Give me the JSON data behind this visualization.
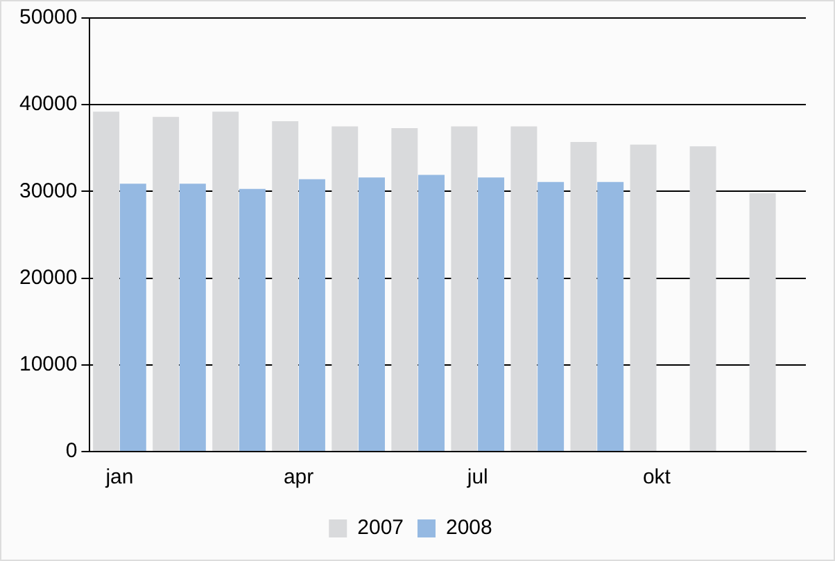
{
  "chart_data": {
    "type": "bar",
    "categories": [
      "jan",
      null,
      null,
      "apr",
      null,
      null,
      "jul",
      null,
      null,
      "okt",
      null,
      null
    ],
    "series": [
      {
        "name": "2007",
        "color": "#d9dadc",
        "values": [
          39200,
          38600,
          39200,
          38100,
          37500,
          37300,
          37500,
          37500,
          35700,
          35400,
          35200,
          29800
        ]
      },
      {
        "name": "2008",
        "color": "#95b9e2",
        "values": [
          30900,
          30900,
          30300,
          31400,
          31600,
          31900,
          31600,
          31100,
          31100,
          null,
          null,
          null
        ]
      }
    ],
    "ylim": [
      0,
      50000
    ],
    "yticks": [
      0,
      10000,
      20000,
      30000,
      40000,
      50000
    ],
    "grid": "y",
    "legend": "bottom"
  }
}
